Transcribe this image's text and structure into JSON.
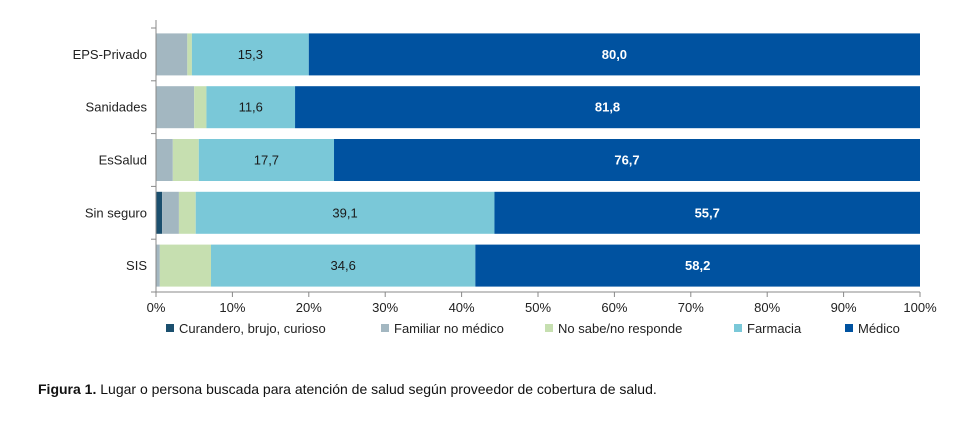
{
  "chart_data": {
    "type": "bar",
    "orientation": "horizontal",
    "stacked": "percent",
    "categories": [
      "EPS-Privado",
      "Sanidades",
      "EsSalud",
      "Sin seguro",
      "SIS"
    ],
    "series": [
      {
        "name": "Curandero, brujo, curioso",
        "color": "#1b4f6e",
        "values": [
          0.0,
          0.0,
          0.0,
          0.8,
          0.0
        ]
      },
      {
        "name": "Familiar no médico",
        "color": "#a3b7c1",
        "values": [
          4.1,
          5.0,
          2.2,
          2.2,
          0.5
        ]
      },
      {
        "name": "No sabe/no responde",
        "color": "#c6dfb0",
        "values": [
          0.6,
          1.6,
          3.4,
          2.2,
          6.7
        ]
      },
      {
        "name": "Farmacia",
        "color": "#7ac8d8",
        "values": [
          15.3,
          11.6,
          17.7,
          39.1,
          34.6
        ]
      },
      {
        "name": "Médico",
        "color": "#0052a0",
        "values": [
          80.0,
          81.8,
          76.7,
          55.7,
          58.2
        ]
      }
    ],
    "data_labels": [
      {
        "category": 0,
        "series": 3,
        "text": "15,3"
      },
      {
        "category": 0,
        "series": 4,
        "text": "80,0"
      },
      {
        "category": 1,
        "series": 3,
        "text": "11,6"
      },
      {
        "category": 1,
        "series": 4,
        "text": "81,8"
      },
      {
        "category": 2,
        "series": 3,
        "text": "17,7"
      },
      {
        "category": 2,
        "series": 4,
        "text": "76,7"
      },
      {
        "category": 3,
        "series": 3,
        "text": "39,1"
      },
      {
        "category": 3,
        "series": 4,
        "text": "55,7"
      },
      {
        "category": 4,
        "series": 3,
        "text": "34,6"
      },
      {
        "category": 4,
        "series": 4,
        "text": "58,2"
      }
    ],
    "xlim": [
      0,
      100
    ],
    "x_ticks": [
      "0%",
      "10%",
      "20%",
      "30%",
      "40%",
      "50%",
      "60%",
      "70%",
      "80%",
      "90%",
      "100%"
    ],
    "grid": false,
    "legend_position": "bottom"
  },
  "caption": {
    "label": "Figura 1.",
    "text": " Lugar o persona buscada para atención de salud según proveedor de cobertura de salud."
  }
}
